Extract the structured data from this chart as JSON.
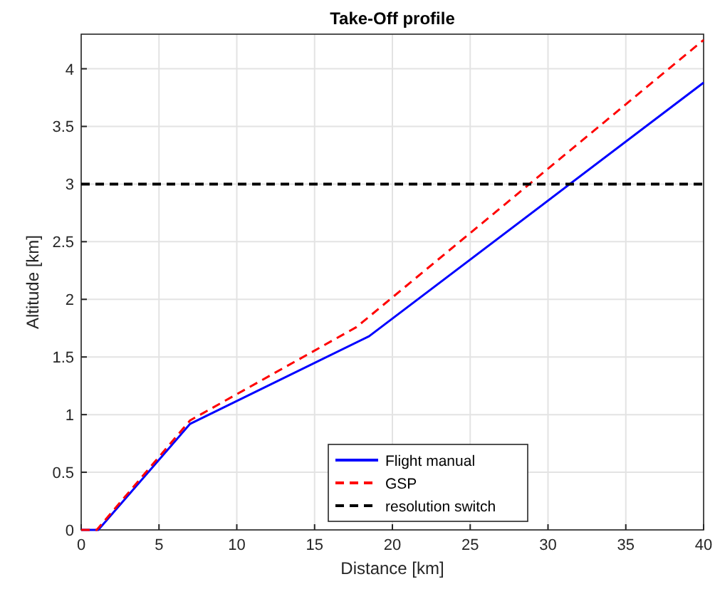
{
  "chart_data": {
    "type": "line",
    "title": "Take-Off profile",
    "xlabel": "Distance [km]",
    "ylabel": "Altitude [km]",
    "xlim": [
      0,
      40
    ],
    "xticks": [
      0,
      5,
      10,
      15,
      20,
      25,
      30,
      35,
      40
    ],
    "ylim": [
      0,
      4.3
    ],
    "yticks": [
      0,
      0.5,
      1,
      1.5,
      2,
      2.5,
      3,
      3.5,
      4
    ],
    "grid": true,
    "legend": "bottom",
    "series": [
      {
        "name": "Flight manual",
        "color": "#0000ff",
        "line_style": "solid",
        "x": [
          0,
          1.1,
          7,
          18.5,
          40
        ],
        "values": [
          0,
          0,
          0.92,
          1.68,
          3.88
        ]
      },
      {
        "name": "GSP",
        "color": "#ff0000",
        "line_style": "dashed",
        "x": [
          0,
          1,
          7,
          17.7,
          40
        ],
        "values": [
          0,
          0,
          0.95,
          1.76,
          4.25
        ]
      }
    ],
    "ref_lines": [
      {
        "axis": "y",
        "value": 3,
        "label": "resolution switch",
        "color": "#000000",
        "line_style": "dashed"
      }
    ]
  }
}
